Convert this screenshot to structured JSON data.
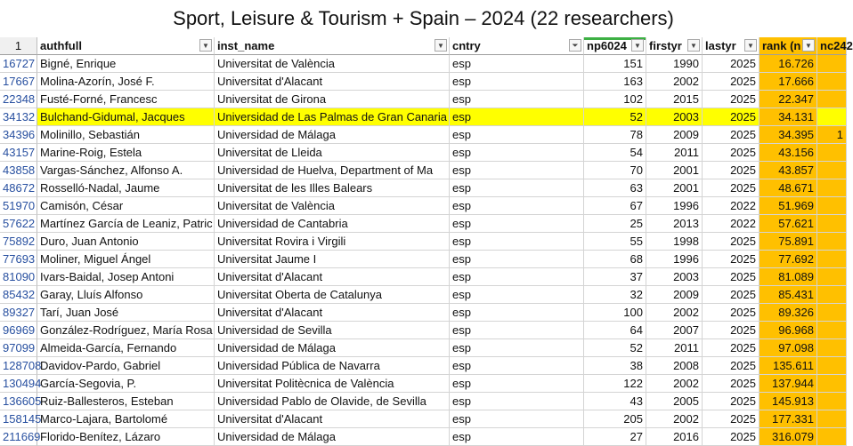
{
  "title": "Sport, Leisure & Tourism + Spain – 2024 (22 researchers)",
  "header": {
    "row_num": "1",
    "authfull": "authfull",
    "inst_name": "inst_name",
    "cntry": "cntry",
    "np": "np6024",
    "firstyr": "firstyr",
    "lastyr": "lastyr",
    "rank": "rank (n",
    "nc": "nc242"
  },
  "rows": [
    {
      "rn": "16727",
      "name": "Bigné, Enrique",
      "inst": "Universitat de València",
      "cntry": "esp",
      "np": "151",
      "first": "1990",
      "last": "2025",
      "rank": "16.726",
      "nc": ""
    },
    {
      "rn": "17667",
      "name": "Molina-Azorín, José F.",
      "inst": "Universitat d'Alacant",
      "cntry": "esp",
      "np": "163",
      "first": "2002",
      "last": "2025",
      "rank": "17.666",
      "nc": ""
    },
    {
      "rn": "22348",
      "name": "Fusté-Forné, Francesc",
      "inst": "Universitat de Girona",
      "cntry": "esp",
      "np": "102",
      "first": "2015",
      "last": "2025",
      "rank": "22.347",
      "nc": ""
    },
    {
      "rn": "34132",
      "name": "Bulchand-Gidumal, Jacques",
      "inst": "Universidad de Las Palmas de Gran Canaria",
      "cntry": "esp",
      "np": "52",
      "first": "2003",
      "last": "2025",
      "rank": "34.131",
      "nc": ""
    },
    {
      "rn": "34396",
      "name": "Molinillo, Sebastián",
      "inst": "Universidad de Málaga",
      "cntry": "esp",
      "np": "78",
      "first": "2009",
      "last": "2025",
      "rank": "34.395",
      "nc": "1"
    },
    {
      "rn": "43157",
      "name": "Marine-Roig, Estela",
      "inst": "Universitat de Lleida",
      "cntry": "esp",
      "np": "54",
      "first": "2011",
      "last": "2025",
      "rank": "43.156",
      "nc": ""
    },
    {
      "rn": "43858",
      "name": "Vargas-Sánchez, Alfonso A.",
      "inst": "Universidad de Huelva, Department of Ma",
      "cntry": "esp",
      "np": "70",
      "first": "2001",
      "last": "2025",
      "rank": "43.857",
      "nc": ""
    },
    {
      "rn": "48672",
      "name": "Rosselló-Nadal, Jaume",
      "inst": "Universitat de les Illes Balears",
      "cntry": "esp",
      "np": "63",
      "first": "2001",
      "last": "2025",
      "rank": "48.671",
      "nc": ""
    },
    {
      "rn": "51970",
      "name": "Camisón, César",
      "inst": "Universitat de València",
      "cntry": "esp",
      "np": "67",
      "first": "1996",
      "last": "2022",
      "rank": "51.969",
      "nc": ""
    },
    {
      "rn": "57622",
      "name": "Martínez García de Leaniz, Patric",
      "inst": "Universidad de Cantabria",
      "cntry": "esp",
      "np": "25",
      "first": "2013",
      "last": "2022",
      "rank": "57.621",
      "nc": ""
    },
    {
      "rn": "75892",
      "name": "Duro, Juan Antonio",
      "inst": "Universitat Rovira i Virgili",
      "cntry": "esp",
      "np": "55",
      "first": "1998",
      "last": "2025",
      "rank": "75.891",
      "nc": ""
    },
    {
      "rn": "77693",
      "name": "Moliner, Miguel Ángel",
      "inst": "Universitat Jaume I",
      "cntry": "esp",
      "np": "68",
      "first": "1996",
      "last": "2025",
      "rank": "77.692",
      "nc": ""
    },
    {
      "rn": "81090",
      "name": "Ivars-Baidal, Josep Antoni",
      "inst": "Universitat d'Alacant",
      "cntry": "esp",
      "np": "37",
      "first": "2003",
      "last": "2025",
      "rank": "81.089",
      "nc": ""
    },
    {
      "rn": "85432",
      "name": "Garay, Lluís Alfonso",
      "inst": "Universitat Oberta de Catalunya",
      "cntry": "esp",
      "np": "32",
      "first": "2009",
      "last": "2025",
      "rank": "85.431",
      "nc": ""
    },
    {
      "rn": "89327",
      "name": "Tarí, Juan José",
      "inst": "Universitat d'Alacant",
      "cntry": "esp",
      "np": "100",
      "first": "2002",
      "last": "2025",
      "rank": "89.326",
      "nc": ""
    },
    {
      "rn": "96969",
      "name": "González-Rodríguez, María Rosa",
      "inst": "Universidad de Sevilla",
      "cntry": "esp",
      "np": "64",
      "first": "2007",
      "last": "2025",
      "rank": "96.968",
      "nc": ""
    },
    {
      "rn": "97099",
      "name": "Almeida-García, Fernando",
      "inst": "Universidad de Málaga",
      "cntry": "esp",
      "np": "52",
      "first": "2011",
      "last": "2025",
      "rank": "97.098",
      "nc": ""
    },
    {
      "rn": "128708",
      "name": "Davidov-Pardo, Gabriel",
      "inst": "Universidad Pública de Navarra",
      "cntry": "esp",
      "np": "38",
      "first": "2008",
      "last": "2025",
      "rank": "135.611",
      "nc": ""
    },
    {
      "rn": "130494",
      "name": "García-Segovia, P.",
      "inst": "Universitat Politècnica de València",
      "cntry": "esp",
      "np": "122",
      "first": "2002",
      "last": "2025",
      "rank": "137.944",
      "nc": ""
    },
    {
      "rn": "136605",
      "name": "Ruiz-Ballesteros, Esteban",
      "inst": "Universidad Pablo de Olavide, de Sevilla",
      "cntry": "esp",
      "np": "43",
      "first": "2005",
      "last": "2025",
      "rank": "145.913",
      "nc": ""
    },
    {
      "rn": "158145",
      "name": "Marco-Lajara, Bartolomé",
      "inst": "Universitat d'Alacant",
      "cntry": "esp",
      "np": "205",
      "first": "2002",
      "last": "2025",
      "rank": "177.331",
      "nc": ""
    },
    {
      "rn": "211669",
      "name": "Florido-Benítez, Lázaro",
      "inst": "Universidad de Málaga",
      "cntry": "esp",
      "np": "27",
      "first": "2016",
      "last": "2025",
      "rank": "316.079",
      "nc": ""
    }
  ],
  "icons": {
    "dropdown": "dropdown-arrow-icon",
    "filter": "filter-icon"
  },
  "colors": {
    "highlight": "#ffff00",
    "rank_fill": "#ffc000",
    "row_num": "#2850a0"
  }
}
